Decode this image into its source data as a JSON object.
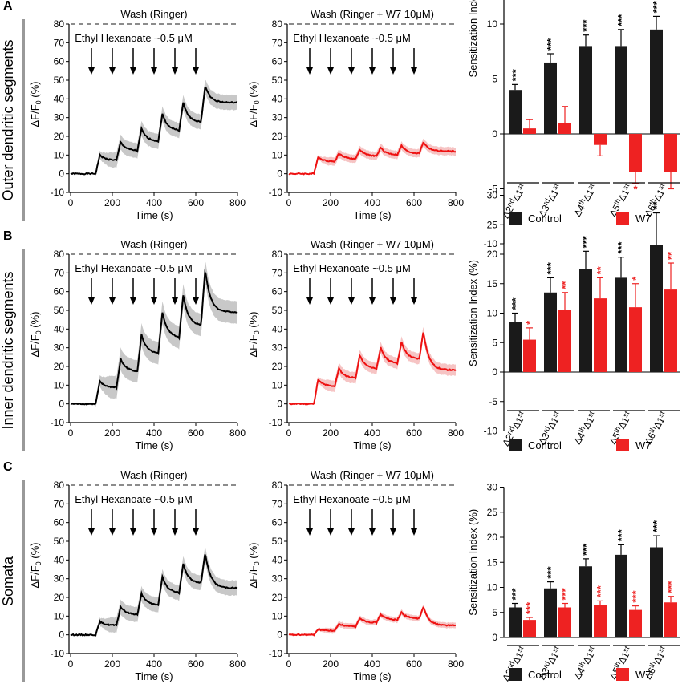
{
  "figure": {
    "rows": [
      {
        "letter": "A",
        "row_label": "Outer dendritic segments",
        "traces": [
          {
            "wash": "Wash  (Ringer)",
            "stim": "Ethyl Hexanoate ~0.5 μM",
            "trace_color": "#000000",
            "band_color": "#c8c8c8",
            "peaks": [
              10,
              17,
              24,
              32,
              38,
              47
            ],
            "plateau": 38,
            "sd": 4
          },
          {
            "wash": "Wash  (Ringer + W7 10μM)",
            "stim": "Ethyl Hexanoate ~0.5 μM",
            "trace_color": "#ee1111",
            "band_color": "#f6c4c4",
            "peaks": [
              9,
              11,
              13,
              14,
              15,
              17
            ],
            "plateau": 12,
            "sd": 2.2
          }
        ],
        "bar": {
          "ylim": [
            -10,
            30
          ],
          "yticks": [
            -10,
            -5,
            0,
            5
          ],
          "control": [
            4,
            6.5,
            8,
            8,
            9.5
          ],
          "w7": [
            0.5,
            1,
            -1,
            -3.5,
            -3.5
          ],
          "control_err": [
            0.5,
            0.8,
            1,
            1.5,
            1.2
          ],
          "w7_err": [
            0.8,
            1.5,
            1,
            1,
            1.5
          ],
          "control_sig": [
            "***",
            "***",
            "***",
            "***",
            "***"
          ],
          "w7_sig": [
            "",
            "",
            "",
            "*",
            ""
          ]
        }
      },
      {
        "letter": "B",
        "row_label": "Inner dendritic segments",
        "traces": [
          {
            "wash": "Wash  (Ringer)",
            "stim": "Ethyl Hexanoate ~0.5      μM",
            "trace_color": "#000000",
            "band_color": "#c8c8c8",
            "peaks": [
              12,
              24,
              37,
              49,
              58,
              72
            ],
            "plateau": 49,
            "sd": 6
          },
          {
            "wash": "Wash  (Ringer + W7 10μM)",
            "stim": "Ethyl Hexanoate ~0.5 μM",
            "trace_color": "#ee1111",
            "band_color": "#f6c4c4",
            "peaks": [
              13,
              19,
              26,
              30,
              33,
              39
            ],
            "plateau": 18,
            "sd": 3
          }
        ],
        "bar": {
          "ylim": [
            -10,
            30
          ],
          "yticks": [
            -10,
            -5,
            0,
            5,
            10,
            15,
            20,
            25,
            30
          ],
          "control": [
            8.5,
            13.5,
            17.5,
            16,
            21.5
          ],
          "w7": [
            5.5,
            10.5,
            12.5,
            11,
            14
          ],
          "control_err": [
            1.5,
            2.5,
            3,
            3.5,
            5.5
          ],
          "w7_err": [
            2,
            3,
            3.5,
            4,
            4.5
          ],
          "control_sig": [
            "***",
            "***",
            "***",
            "***",
            "**"
          ],
          "w7_sig": [
            "*",
            "**",
            "**",
            "*",
            "**"
          ]
        }
      },
      {
        "letter": "C",
        "row_label": "Somata",
        "traces": [
          {
            "wash": "Wash  (Ringer)",
            "stim": "Ethyl Hexanoate ~0.5 μM",
            "trace_color": "#000000",
            "band_color": "#c8c8c8",
            "peaks": [
              7,
              15,
              22,
              31,
              38,
              44
            ],
            "plateau": 25,
            "sd": 4
          },
          {
            "wash": "Wash  (Ringer + W7 10μM)",
            "stim": "Ethyl Hexanoate ~0.5 μM",
            "trace_color": "#ee1111",
            "band_color": "#f6c4c4",
            "peaks": [
              3,
              6,
              9,
              11,
              12,
              15
            ],
            "plateau": 5,
            "sd": 1.5
          }
        ],
        "bar": {
          "ylim": [
            0,
            30
          ],
          "yticks": [
            0,
            5,
            10,
            15,
            20,
            25,
            30
          ],
          "control": [
            6,
            9.8,
            14.2,
            16.5,
            18
          ],
          "w7": [
            3.5,
            6,
            6.5,
            5.5,
            7
          ],
          "control_err": [
            0.8,
            1.3,
            1.5,
            2,
            2.3
          ],
          "w7_err": [
            0.5,
            0.8,
            0.8,
            0.8,
            1.2
          ],
          "control_sig": [
            "***",
            "***",
            "***",
            "***",
            "***"
          ],
          "w7_sig": [
            "***",
            "***",
            "***",
            "***",
            "***"
          ]
        }
      }
    ],
    "legend": {
      "control": "Control",
      "w7": "W7",
      "control_color": "#1a1a1a",
      "w7_color": "#ee2222"
    },
    "comparisons": [
      {
        "base": "Δ2",
        "sup": "nd",
        "rest": "Δ1",
        "rest_sup": "st"
      },
      {
        "base": "Δ3",
        "sup": "rd",
        "rest": "Δ1",
        "rest_sup": "st"
      },
      {
        "base": "Δ4",
        "sup": "th",
        "rest": "Δ1",
        "rest_sup": "st"
      },
      {
        "base": "Δ5",
        "sup": "th",
        "rest": "Δ1",
        "rest_sup": "st"
      },
      {
        "base": "Δ6",
        "sup": "th",
        "rest": "Δ1",
        "rest_sup": "st"
      }
    ]
  },
  "chart_data": [
    {
      "type": "line",
      "panel": "A-Ringer",
      "title": "Wash  (Ringer)",
      "xlabel": "Time (s)",
      "ylabel": "ΔF/F0 (%)",
      "xlim": [
        0,
        800
      ],
      "ylim": [
        -10,
        80
      ],
      "xticks": [
        0,
        200,
        400,
        600,
        800
      ],
      "yticks": [
        -10,
        0,
        10,
        20,
        30,
        40,
        50,
        60,
        70,
        80
      ],
      "stimulus_times": [
        100,
        200,
        300,
        400,
        500,
        600
      ],
      "peak_times": [
        140,
        240,
        340,
        440,
        540,
        645
      ],
      "peak_values": [
        10,
        17,
        24,
        32,
        38,
        47
      ],
      "final_value": 38
    },
    {
      "type": "line",
      "panel": "A-W7",
      "title": "Wash  (Ringer + W7 10μM)",
      "xlabel": "Time (s)",
      "ylabel": "ΔF/F0 (%)",
      "xlim": [
        0,
        800
      ],
      "ylim": [
        -10,
        80
      ],
      "peak_values": [
        9,
        11,
        13,
        14,
        15,
        17
      ],
      "final_value": 12
    },
    {
      "type": "bar",
      "panel": "A-index",
      "ylabel": "Sensitization Index (%)",
      "categories": [
        "Δ2nd-Δ1st",
        "Δ3rd-Δ1st",
        "Δ4th-Δ1st",
        "Δ5th-Δ1st",
        "Δ6th-Δ1st"
      ],
      "series": [
        {
          "name": "Control",
          "values": [
            4,
            6.5,
            8,
            8,
            9.5
          ]
        },
        {
          "name": "W7",
          "values": [
            0.5,
            1,
            -1,
            -3.5,
            -3.5
          ]
        }
      ],
      "ylim": [
        -10,
        30
      ]
    },
    {
      "type": "line",
      "panel": "B-Ringer",
      "peak_values": [
        12,
        24,
        37,
        49,
        58,
        72
      ],
      "final_value": 49
    },
    {
      "type": "line",
      "panel": "B-W7",
      "peak_values": [
        13,
        19,
        26,
        30,
        33,
        39
      ],
      "final_value": 18
    },
    {
      "type": "bar",
      "panel": "B-index",
      "categories": [
        "Δ2nd-Δ1st",
        "Δ3rd-Δ1st",
        "Δ4th-Δ1st",
        "Δ5th-Δ1st",
        "Δ6th-Δ1st"
      ],
      "series": [
        {
          "name": "Control",
          "values": [
            8.5,
            13.5,
            17.5,
            16,
            21.5
          ]
        },
        {
          "name": "W7",
          "values": [
            5.5,
            10.5,
            12.5,
            11,
            14
          ]
        }
      ],
      "ylim": [
        -10,
        30
      ]
    },
    {
      "type": "line",
      "panel": "C-Ringer",
      "peak_values": [
        7,
        15,
        22,
        31,
        38,
        44
      ],
      "final_value": 25
    },
    {
      "type": "line",
      "panel": "C-W7",
      "peak_values": [
        3,
        6,
        9,
        11,
        12,
        15
      ],
      "final_value": 5
    },
    {
      "type": "bar",
      "panel": "C-index",
      "categories": [
        "Δ2nd-Δ1st",
        "Δ3rd-Δ1st",
        "Δ4th-Δ1st",
        "Δ5th-Δ1st",
        "Δ6th-Δ1st"
      ],
      "series": [
        {
          "name": "Control",
          "values": [
            6,
            9.8,
            14.2,
            16.5,
            18
          ]
        },
        {
          "name": "W7",
          "values": [
            3.5,
            6,
            6.5,
            5.5,
            7
          ]
        }
      ],
      "ylim": [
        0,
        30
      ]
    }
  ],
  "axis_text": {
    "ylabel_trace": "ΔF/F",
    "ylabel_trace_sub": "0",
    "ylabel_trace_unit": " (%)",
    "xlabel_trace": "Time (s)",
    "ylabel_bar": "Sensitization Index (%)"
  }
}
